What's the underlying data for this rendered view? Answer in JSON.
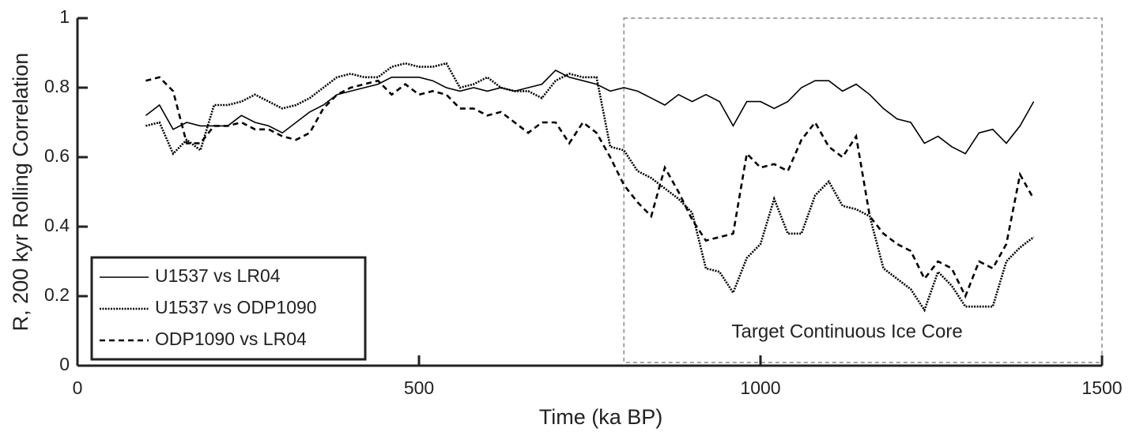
{
  "chart_data": {
    "type": "line",
    "xlabel": "Time (ka BP)",
    "ylabel": "R, 200 kyr Rolling Correlation",
    "x": [
      100,
      120,
      140,
      160,
      180,
      200,
      220,
      240,
      260,
      280,
      300,
      320,
      340,
      360,
      380,
      400,
      420,
      440,
      460,
      480,
      500,
      520,
      540,
      560,
      580,
      600,
      620,
      640,
      660,
      680,
      700,
      720,
      740,
      760,
      780,
      800,
      820,
      840,
      860,
      880,
      900,
      920,
      940,
      960,
      980,
      1000,
      1020,
      1040,
      1060,
      1080,
      1100,
      1120,
      1140,
      1160,
      1180,
      1200,
      1220,
      1240,
      1260,
      1280,
      1300,
      1320,
      1340,
      1360,
      1380,
      1400
    ],
    "series": [
      {
        "name": "U1537 vs LR04",
        "color": "#000000",
        "style": "solid",
        "values": [
          0.72,
          0.75,
          0.68,
          0.7,
          0.69,
          0.69,
          0.69,
          0.72,
          0.7,
          0.69,
          0.67,
          0.7,
          0.73,
          0.75,
          0.78,
          0.79,
          0.8,
          0.81,
          0.83,
          0.83,
          0.83,
          0.82,
          0.8,
          0.79,
          0.8,
          0.79,
          0.8,
          0.79,
          0.8,
          0.81,
          0.85,
          0.83,
          0.82,
          0.81,
          0.79,
          0.8,
          0.79,
          0.77,
          0.75,
          0.78,
          0.76,
          0.78,
          0.76,
          0.69,
          0.76,
          0.76,
          0.74,
          0.76,
          0.8,
          0.82,
          0.82,
          0.79,
          0.81,
          0.78,
          0.74,
          0.71,
          0.7,
          0.64,
          0.66,
          0.63,
          0.61,
          0.67,
          0.68,
          0.64,
          0.69,
          0.76
        ]
      },
      {
        "name": "U1537 vs ODP1090",
        "color": "#000000",
        "style": "dotted",
        "values": [
          0.69,
          0.7,
          0.61,
          0.65,
          0.62,
          0.75,
          0.75,
          0.76,
          0.78,
          0.76,
          0.74,
          0.75,
          0.77,
          0.8,
          0.83,
          0.84,
          0.83,
          0.83,
          0.86,
          0.87,
          0.86,
          0.86,
          0.87,
          0.8,
          0.81,
          0.83,
          0.8,
          0.79,
          0.79,
          0.77,
          0.82,
          0.84,
          0.83,
          0.83,
          0.63,
          0.62,
          0.56,
          0.54,
          0.51,
          0.48,
          0.44,
          0.28,
          0.27,
          0.21,
          0.31,
          0.35,
          0.48,
          0.38,
          0.38,
          0.49,
          0.53,
          0.46,
          0.45,
          0.43,
          0.28,
          0.25,
          0.22,
          0.16,
          0.27,
          0.23,
          0.17,
          0.17,
          0.17,
          0.3,
          0.34,
          0.37
        ]
      },
      {
        "name": "ODP1090 vs LR04",
        "color": "#000000",
        "style": "dashed",
        "values": [
          0.82,
          0.83,
          0.79,
          0.64,
          0.64,
          0.69,
          0.69,
          0.7,
          0.68,
          0.68,
          0.66,
          0.65,
          0.67,
          0.74,
          0.78,
          0.8,
          0.81,
          0.82,
          0.78,
          0.81,
          0.78,
          0.79,
          0.78,
          0.74,
          0.74,
          0.72,
          0.73,
          0.7,
          0.67,
          0.7,
          0.7,
          0.64,
          0.7,
          0.67,
          0.6,
          0.52,
          0.47,
          0.43,
          0.57,
          0.5,
          0.42,
          0.36,
          0.37,
          0.38,
          0.61,
          0.57,
          0.58,
          0.56,
          0.65,
          0.7,
          0.63,
          0.6,
          0.66,
          0.43,
          0.38,
          0.35,
          0.33,
          0.25,
          0.3,
          0.28,
          0.2,
          0.3,
          0.28,
          0.35,
          0.55,
          0.48
        ]
      }
    ],
    "highlight": {
      "label": "Target Continuous Ice Core",
      "xlim": [
        800,
        1500
      ]
    },
    "xlim": [
      0,
      1500
    ],
    "xticks": [
      0,
      500,
      1000,
      1500
    ],
    "ylim": [
      0,
      1
    ],
    "yticks": [
      0,
      0.2,
      0.4,
      0.6,
      0.8,
      1
    ],
    "legend": "lower left"
  }
}
